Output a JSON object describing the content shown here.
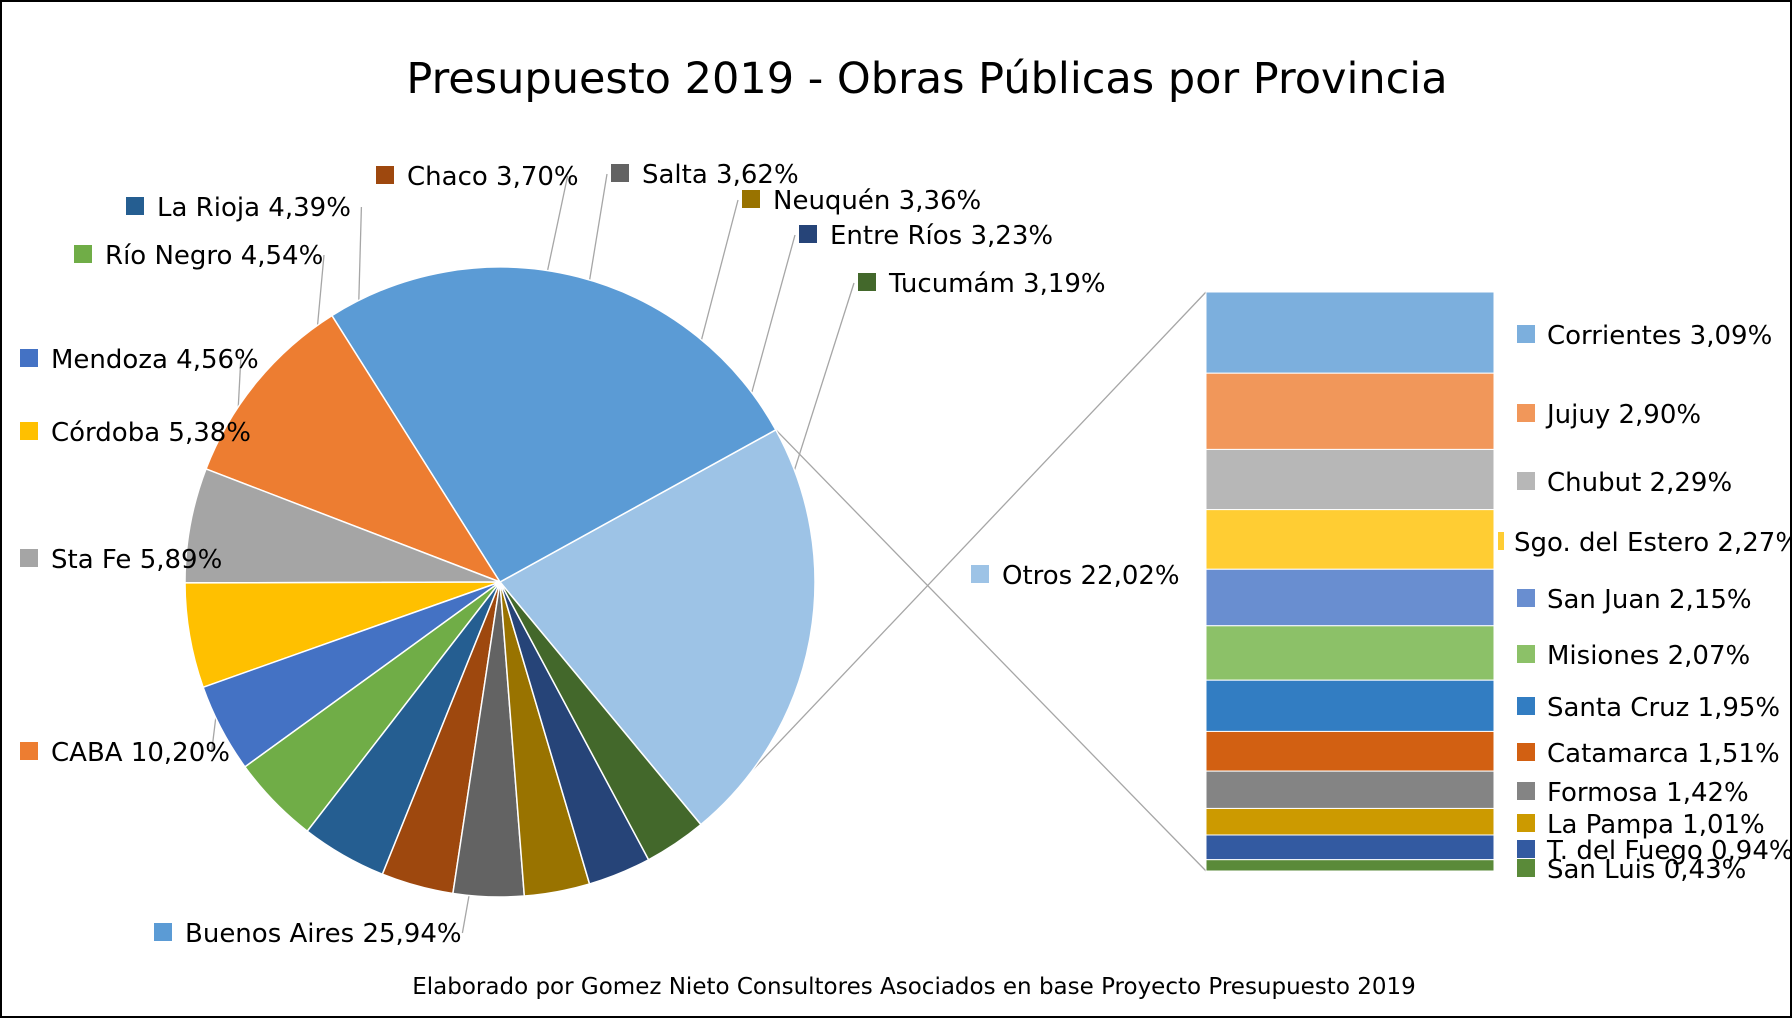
{
  "chart_data": {
    "type": "bar-of-pie",
    "title": "Presupuesto 2019 - Obras Públicas por Provincia",
    "source": "Elaborado por Gomez Nieto Consultores Asociados en base Proyecto Presupuesto 2019",
    "unit": "%",
    "pie": [
      {
        "name": "Otros",
        "value": 22.02,
        "label": "Otros 22,02%",
        "color": "#9dc3e6"
      },
      {
        "name": "Buenos Aires",
        "value": 25.94,
        "label": "Buenos Aires 25,94%",
        "color": "#5b9bd5"
      },
      {
        "name": "CABA",
        "value": 10.2,
        "label": "CABA 10,20%",
        "color": "#ed7d31"
      },
      {
        "name": "Sta Fe",
        "value": 5.89,
        "label": "Sta Fe 5,89%",
        "color": "#a5a5a5"
      },
      {
        "name": "Córdoba",
        "value": 5.38,
        "label": "Córdoba 5,38%",
        "color": "#ffc000"
      },
      {
        "name": "Mendoza",
        "value": 4.56,
        "label": "Mendoza 4,56%",
        "color": "#4472c4"
      },
      {
        "name": "Río Negro",
        "value": 4.54,
        "label": "Río Negro 4,54%",
        "color": "#70ad47"
      },
      {
        "name": "La Rioja",
        "value": 4.39,
        "label": "La Rioja 4,39%",
        "color": "#255e91"
      },
      {
        "name": "Chaco",
        "value": 3.7,
        "label": "Chaco 3,70%",
        "color": "#9e480e"
      },
      {
        "name": "Salta",
        "value": 3.62,
        "label": "Salta 3,62%",
        "color": "#636363"
      },
      {
        "name": "Neuquén",
        "value": 3.36,
        "label": "Neuquén 3,36%",
        "color": "#997300"
      },
      {
        "name": "Entre Ríos",
        "value": 3.23,
        "label": "Entre Ríos 3,23%",
        "color": "#264478"
      },
      {
        "name": "Tucumám",
        "value": 3.19,
        "label": "Tucumám 3,19%",
        "color": "#43682b"
      }
    ],
    "bar": [
      {
        "name": "Corrientes",
        "value": 3.09,
        "label": "Corrientes 3,09%",
        "color": "#7cafdd"
      },
      {
        "name": "Jujuy",
        "value": 2.9,
        "label": "Jujuy 2,90%",
        "color": "#f1975a"
      },
      {
        "name": "Chubut",
        "value": 2.29,
        "label": "Chubut 2,29%",
        "color": "#b7b7b7"
      },
      {
        "name": "Sgo. del Estero",
        "value": 2.27,
        "label": "Sgo. del Estero 2,27%",
        "color": "#ffcd33"
      },
      {
        "name": "San Juan",
        "value": 2.15,
        "label": "San Juan 2,15%",
        "color": "#698ed0"
      },
      {
        "name": "Misiones",
        "value": 2.07,
        "label": "Misiones 2,07%",
        "color": "#8cc168"
      },
      {
        "name": "Santa Cruz",
        "value": 1.95,
        "label": "Santa Cruz 1,95%",
        "color": "#327dc2"
      },
      {
        "name": "Catamarca",
        "value": 1.51,
        "label": "Catamarca 1,51%",
        "color": "#d26012"
      },
      {
        "name": "Formosa",
        "value": 1.42,
        "label": "Formosa 1,42%",
        "color": "#848484"
      },
      {
        "name": "La Pampa",
        "value": 1.01,
        "label": "La Pampa 1,01%",
        "color": "#cc9a00"
      },
      {
        "name": "T. del Fuego",
        "value": 0.94,
        "label": "T. del Fuego 0,94%",
        "color": "#335aa1"
      },
      {
        "name": "San Luis",
        "value": 0.43,
        "label": "San Luis 0,43%",
        "color": "#5a8a39"
      }
    ]
  }
}
